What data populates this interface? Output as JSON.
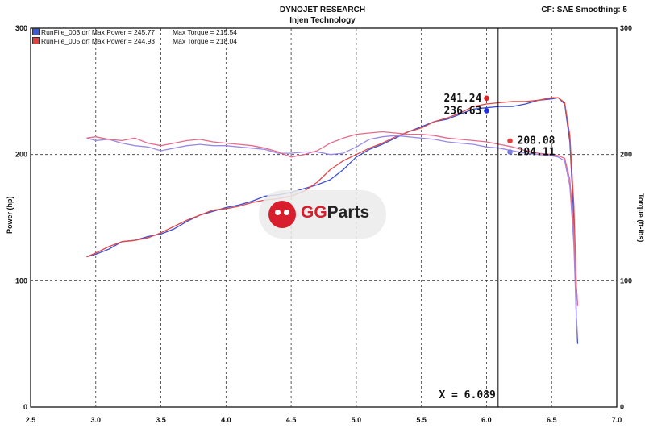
{
  "header": {
    "title": "DYNOJET RESEARCH",
    "subtitle": "Injen Technology",
    "settings": "CF: SAE  Smoothing: 5"
  },
  "legend": [
    {
      "swatch": "#3a5bd9",
      "run": "RunFile_003.drf Max Power = 245.77",
      "torque": "Max Torque = 215.54"
    },
    {
      "swatch": "#e04040",
      "run": "RunFile_005.drf Max Power = 244.93",
      "torque": "Max Torque = 218.04"
    }
  ],
  "watermark": {
    "part1": "GG",
    "part2": "Parts",
    "icon": "bull-logo-icon"
  },
  "chart_data": {
    "type": "line",
    "ylabel": "Power (hp)",
    "y2label": "Torque (ft-lbs)",
    "xlim": [
      2.5,
      7.0
    ],
    "ylim": [
      0,
      300
    ],
    "y2lim": [
      0,
      300
    ],
    "xticks": [
      "2.5",
      "3.0",
      "3.5",
      "4.0",
      "4.5",
      "5.0",
      "5.5",
      "6.0",
      "6.5",
      "7.0"
    ],
    "yticks": [
      "0",
      "100",
      "200",
      "300"
    ],
    "y2ticks": [
      "0",
      "100",
      "200",
      "300"
    ],
    "grid": true,
    "cursor": {
      "x": 6.089,
      "label": "X = 6.089"
    },
    "readouts": [
      {
        "text": "241.24",
        "x": 6.0,
        "y": 244.6,
        "color": "#e02020"
      },
      {
        "text": "236.63",
        "x": 6.0,
        "y": 234.6,
        "color": "#1d2fe0"
      },
      {
        "text": "208.08",
        "x": 6.18,
        "y": 210.8,
        "color": "#e04040"
      },
      {
        "text": "204.11",
        "x": 6.18,
        "y": 202.0,
        "color": "#7a7ae0"
      }
    ],
    "series": [
      {
        "color": "#3a4fd0",
        "kind": "power",
        "x": [
          2.93,
          3.0,
          3.1,
          3.2,
          3.3,
          3.4,
          3.5,
          3.6,
          3.7,
          3.8,
          3.9,
          4.0,
          4.1,
          4.2,
          4.3,
          4.4,
          4.5,
          4.6,
          4.7,
          4.8,
          4.9,
          5.0,
          5.1,
          5.2,
          5.3,
          5.4,
          5.5,
          5.6,
          5.7,
          5.8,
          5.9,
          6.0,
          6.1,
          6.2,
          6.3,
          6.4,
          6.5,
          6.55,
          6.6,
          6.64,
          6.67,
          6.69,
          6.7
        ],
        "y": [
          119,
          121,
          125,
          131,
          132,
          135,
          137,
          141,
          147,
          152,
          155,
          158,
          160,
          163,
          167,
          168,
          170,
          173,
          176,
          180,
          188,
          198,
          204,
          208,
          213,
          218,
          222,
          226,
          228,
          232,
          236,
          237,
          238,
          238,
          240,
          243,
          244,
          245,
          240,
          210,
          150,
          70,
          50
        ]
      },
      {
        "color": "#e04848",
        "kind": "power",
        "x": [
          2.93,
          3.0,
          3.1,
          3.2,
          3.3,
          3.4,
          3.5,
          3.6,
          3.7,
          3.8,
          3.9,
          4.0,
          4.1,
          4.2,
          4.3,
          4.4,
          4.5,
          4.6,
          4.7,
          4.8,
          4.9,
          5.0,
          5.1,
          5.2,
          5.3,
          5.4,
          5.5,
          5.6,
          5.7,
          5.8,
          5.9,
          6.0,
          6.1,
          6.2,
          6.3,
          6.4,
          6.5,
          6.55,
          6.6,
          6.64,
          6.67,
          6.69,
          6.7
        ],
        "y": [
          119,
          122,
          127,
          131,
          132,
          134,
          138,
          143,
          148,
          152,
          156,
          157,
          159,
          162,
          164,
          165,
          167,
          171,
          178,
          188,
          195,
          200,
          205,
          209,
          214,
          218,
          221,
          226,
          229,
          233,
          238,
          240,
          241,
          242,
          242,
          243,
          245,
          245,
          241,
          215,
          160,
          95,
          80
        ]
      },
      {
        "color": "#9a8ae6",
        "kind": "torque",
        "x": [
          2.93,
          3.0,
          3.1,
          3.2,
          3.3,
          3.4,
          3.5,
          3.6,
          3.7,
          3.8,
          3.9,
          4.0,
          4.1,
          4.2,
          4.3,
          4.4,
          4.5,
          4.6,
          4.7,
          4.8,
          4.9,
          5.0,
          5.1,
          5.2,
          5.3,
          5.4,
          5.5,
          5.6,
          5.7,
          5.8,
          5.9,
          6.0,
          6.1,
          6.2,
          6.3,
          6.4,
          6.5,
          6.55,
          6.6,
          6.64,
          6.67,
          6.69,
          6.7
        ],
        "y": [
          213,
          211,
          212,
          209,
          207,
          206,
          203,
          205,
          207,
          208,
          207,
          207,
          206,
          205,
          204,
          201,
          201,
          202,
          202,
          200,
          201,
          206,
          212,
          214,
          215,
          214,
          213,
          212,
          210,
          209,
          208,
          206,
          205,
          203,
          201,
          200,
          199,
          198,
          195,
          175,
          130,
          70,
          55
        ]
      },
      {
        "color": "#e86a8a",
        "kind": "torque",
        "x": [
          2.93,
          3.0,
          3.1,
          3.2,
          3.3,
          3.4,
          3.5,
          3.6,
          3.7,
          3.8,
          3.9,
          4.0,
          4.1,
          4.2,
          4.3,
          4.4,
          4.5,
          4.6,
          4.7,
          4.8,
          4.9,
          5.0,
          5.1,
          5.2,
          5.3,
          5.4,
          5.5,
          5.6,
          5.7,
          5.8,
          5.9,
          6.0,
          6.1,
          6.2,
          6.3,
          6.4,
          6.5,
          6.55,
          6.6,
          6.64,
          6.67,
          6.69,
          6.7
        ],
        "y": [
          213,
          214,
          212,
          211,
          213,
          209,
          207,
          209,
          211,
          212,
          210,
          209,
          208,
          207,
          205,
          202,
          198,
          200,
          203,
          209,
          213,
          216,
          217,
          218,
          217,
          216,
          216,
          215,
          213,
          212,
          211,
          210,
          208,
          206,
          203,
          201,
          200,
          199,
          197,
          180,
          140,
          95,
          80
        ]
      }
    ]
  }
}
